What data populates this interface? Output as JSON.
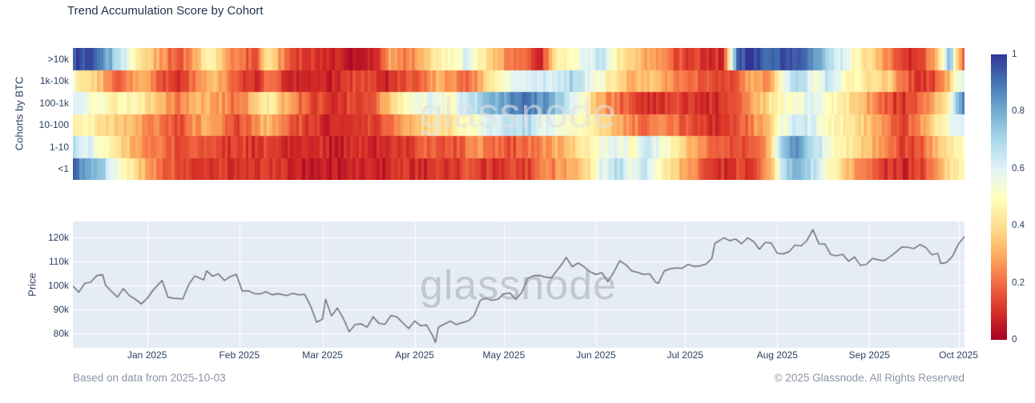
{
  "title": "Trend Accumulation Score by Cohort",
  "watermark": "glassnode",
  "footer": {
    "left": "Based on data from 2025-10-03",
    "right": "© 2025 Glassnode. All Rights Reserved"
  },
  "colors": {
    "panel_bg": "#e5ecf6",
    "grid": "#ffffff",
    "price_line": "#63666e",
    "text": "#2a3f5f",
    "muted": "#8a93a6"
  },
  "xaxis": {
    "ticks": [
      {
        "label": "Jan 2025",
        "t": 0.0833
      },
      {
        "label": "Feb 2025",
        "t": 0.1867
      },
      {
        "label": "Mar 2025",
        "t": 0.28
      },
      {
        "label": "Apr 2025",
        "t": 0.3833
      },
      {
        "label": "May 2025",
        "t": 0.4833
      },
      {
        "label": "Jun 2025",
        "t": 0.5867
      },
      {
        "label": "Jul 2025",
        "t": 0.6867
      },
      {
        "label": "Aug 2025",
        "t": 0.79
      },
      {
        "label": "Sep 2025",
        "t": 0.8933
      },
      {
        "label": "Oct 2025",
        "t": 0.9933
      }
    ]
  },
  "colorbar": {
    "ticks": [
      {
        "label": "1",
        "v": 1
      },
      {
        "label": "0.8",
        "v": 0.8
      },
      {
        "label": "0.6",
        "v": 0.6
      },
      {
        "label": "0.4",
        "v": 0.4
      },
      {
        "label": "0.2",
        "v": 0.2
      },
      {
        "label": "0",
        "v": 0
      }
    ]
  },
  "chart_data": [
    {
      "type": "heatmap",
      "ylabel": "Cohorts by BTC",
      "rows": [
        ">10k",
        "1k-10k",
        "100-1k",
        "10-100",
        "1-10",
        "<1"
      ],
      "zmin": 0,
      "zmax": 1,
      "x_span_days": 300,
      "colorscale": {
        "name": "RdYlBu",
        "stops": [
          [
            0,
            "#a50026"
          ],
          [
            0.1,
            "#d73027"
          ],
          [
            0.2,
            "#f46d43"
          ],
          [
            0.3,
            "#fdae61"
          ],
          [
            0.4,
            "#fee090"
          ],
          [
            0.5,
            "#ffffbf"
          ],
          [
            0.6,
            "#e0f3f8"
          ],
          [
            0.7,
            "#abd9e9"
          ],
          [
            0.8,
            "#74add1"
          ],
          [
            0.9,
            "#4575b4"
          ],
          [
            1,
            "#313695"
          ]
        ]
      },
      "values": [
        [
          0.97,
          0.95,
          0.85,
          0.7,
          0.5,
          0.35,
          0.25,
          0.15,
          0.3,
          0.5,
          0.3,
          0.2,
          0.15,
          0.45,
          0.2,
          0.12,
          0.1,
          0.07,
          0.05,
          0.06,
          0.1,
          0.3,
          0.2,
          0.3,
          0.45,
          0.5,
          0.6,
          0.45,
          0.3,
          0.25,
          0.15,
          0.1,
          0.45,
          0.5,
          0.6,
          0.65,
          0.45,
          0.35,
          0.3,
          0.25,
          0.15,
          0.12,
          0.1,
          0.08,
          0.95,
          0.98,
          0.95,
          0.97,
          0.93,
          0.85,
          0.7,
          0.6,
          0.45,
          0.35,
          0.25,
          0.12,
          0.1,
          0.3,
          0.75,
          0.07
        ],
        [
          0.5,
          0.4,
          0.3,
          0.2,
          0.3,
          0.25,
          0.15,
          0.1,
          0.2,
          0.35,
          0.25,
          0.15,
          0.1,
          0.2,
          0.1,
          0.08,
          0.1,
          0.06,
          0.1,
          0.15,
          0.1,
          0.08,
          0.15,
          0.2,
          0.3,
          0.25,
          0.2,
          0.3,
          0.45,
          0.55,
          0.6,
          0.65,
          0.6,
          0.7,
          0.6,
          0.5,
          0.4,
          0.3,
          0.35,
          0.3,
          0.25,
          0.2,
          0.15,
          0.12,
          0.2,
          0.3,
          0.25,
          0.6,
          0.7,
          0.55,
          0.65,
          0.5,
          0.45,
          0.4,
          0.35,
          0.2,
          0.1,
          0.15,
          0.35,
          0.65
        ],
        [
          0.6,
          0.55,
          0.5,
          0.45,
          0.5,
          0.4,
          0.3,
          0.2,
          0.35,
          0.3,
          0.25,
          0.2,
          0.35,
          0.45,
          0.3,
          0.2,
          0.15,
          0.1,
          0.12,
          0.15,
          0.2,
          0.35,
          0.5,
          0.55,
          0.6,
          0.5,
          0.65,
          0.7,
          0.8,
          0.85,
          0.9,
          0.85,
          0.75,
          0.6,
          0.45,
          0.3,
          0.2,
          0.15,
          0.1,
          0.12,
          0.15,
          0.1,
          0.08,
          0.12,
          0.2,
          0.3,
          0.4,
          0.5,
          0.55,
          0.6,
          0.5,
          0.45,
          0.35,
          0.25,
          0.15,
          0.1,
          0.2,
          0.3,
          0.5,
          0.95
        ],
        [
          0.45,
          0.5,
          0.4,
          0.35,
          0.3,
          0.25,
          0.2,
          0.15,
          0.25,
          0.3,
          0.2,
          0.15,
          0.25,
          0.35,
          0.2,
          0.15,
          0.1,
          0.08,
          0.1,
          0.12,
          0.15,
          0.2,
          0.3,
          0.35,
          0.45,
          0.4,
          0.5,
          0.55,
          0.6,
          0.65,
          0.7,
          0.6,
          0.55,
          0.5,
          0.45,
          0.4,
          0.3,
          0.25,
          0.2,
          0.25,
          0.2,
          0.15,
          0.1,
          0.12,
          0.15,
          0.25,
          0.35,
          0.55,
          0.65,
          0.6,
          0.5,
          0.45,
          0.4,
          0.3,
          0.2,
          0.15,
          0.25,
          0.4,
          0.55,
          0.65
        ],
        [
          0.7,
          0.6,
          0.5,
          0.4,
          0.3,
          0.25,
          0.2,
          0.15,
          0.2,
          0.15,
          0.1,
          0.12,
          0.1,
          0.15,
          0.1,
          0.08,
          0.1,
          0.06,
          0.08,
          0.1,
          0.08,
          0.1,
          0.12,
          0.15,
          0.2,
          0.15,
          0.2,
          0.25,
          0.2,
          0.15,
          0.2,
          0.25,
          0.3,
          0.35,
          0.45,
          0.55,
          0.6,
          0.5,
          0.65,
          0.55,
          0.4,
          0.3,
          0.2,
          0.15,
          0.12,
          0.2,
          0.3,
          0.75,
          0.85,
          0.7,
          0.55,
          0.45,
          0.4,
          0.3,
          0.2,
          0.12,
          0.15,
          0.3,
          0.45,
          0.5
        ],
        [
          0.9,
          0.8,
          0.7,
          0.55,
          0.4,
          0.3,
          0.2,
          0.15,
          0.1,
          0.12,
          0.1,
          0.08,
          0.1,
          0.12,
          0.08,
          0.06,
          0.08,
          0.05,
          0.06,
          0.08,
          0.06,
          0.08,
          0.1,
          0.08,
          0.12,
          0.1,
          0.15,
          0.12,
          0.1,
          0.15,
          0.12,
          0.2,
          0.25,
          0.3,
          0.4,
          0.6,
          0.7,
          0.55,
          0.65,
          0.45,
          0.35,
          0.25,
          0.15,
          0.1,
          0.12,
          0.15,
          0.25,
          0.7,
          0.8,
          0.65,
          0.5,
          0.35,
          0.25,
          0.15,
          0.1,
          0.08,
          0.12,
          0.25,
          0.4,
          0.45
        ]
      ]
    },
    {
      "type": "line",
      "ylabel": "Price",
      "ylim": [
        74,
        126.7
      ],
      "x_span_days": 300,
      "yticks": [
        {
          "label": "120k",
          "v": 120
        },
        {
          "label": "110k",
          "v": 110
        },
        {
          "label": "100k",
          "v": 100
        },
        {
          "label": "90k",
          "v": 90
        },
        {
          "label": "80k",
          "v": 80
        }
      ],
      "x_days": [
        0,
        2,
        4,
        6,
        8,
        10,
        11,
        13,
        15,
        17,
        19,
        21,
        23,
        25,
        27,
        30,
        32,
        34,
        37,
        39,
        41,
        44,
        45,
        47,
        49,
        51,
        53,
        55,
        57,
        59,
        61,
        63,
        65,
        67,
        69,
        72,
        74,
        76,
        78,
        80,
        82,
        84,
        85,
        87,
        89,
        91,
        93,
        95,
        97,
        99,
        101,
        103,
        105,
        107,
        109,
        111,
        113,
        115,
        117,
        119,
        121,
        122,
        123,
        125,
        127,
        129,
        131,
        133,
        135,
        137,
        139,
        141,
        143,
        145,
        147,
        149,
        151,
        153,
        155,
        157,
        159,
        161,
        163,
        165,
        166,
        168,
        170,
        172,
        174,
        176,
        178,
        180,
        182,
        184,
        186,
        188,
        190,
        192,
        194,
        196,
        197,
        199,
        201,
        203,
        205,
        207,
        209,
        211,
        213,
        215,
        216,
        218,
        219,
        221,
        223,
        225,
        227,
        229,
        231,
        233,
        235,
        237,
        239,
        241,
        243,
        245,
        247,
        249,
        251,
        253,
        255,
        257,
        259,
        261,
        263,
        265,
        267,
        269,
        271,
        273,
        275,
        277,
        279,
        281,
        283,
        285,
        287,
        289,
        291,
        292,
        294,
        296,
        298,
        300
      ],
      "y": [
        99.8,
        97.2,
        100.9,
        101.4,
        104.1,
        104.5,
        100.1,
        97.5,
        95.2,
        98.7,
        95.8,
        94.3,
        92.3,
        94.6,
        98.1,
        102.1,
        95.1,
        94.7,
        94.4,
        100.5,
        104.0,
        102.3,
        106.1,
        103.9,
        104.8,
        102.1,
        103.7,
        104.6,
        97.7,
        97.8,
        96.6,
        96.5,
        97.4,
        96.1,
        96.6,
        95.8,
        96.7,
        96.1,
        96.3,
        91.4,
        84.7,
        86.0,
        94.3,
        87.3,
        90.6,
        86.2,
        80.7,
        83.7,
        84.0,
        82.6,
        86.9,
        84.2,
        83.8,
        87.5,
        86.9,
        84.4,
        82.1,
        85.2,
        83.2,
        83.5,
        79.2,
        76.3,
        82.6,
        83.9,
        85.1,
        83.7,
        84.5,
        85.2,
        87.5,
        93.7,
        94.7,
        93.8,
        94.3,
        96.5,
        96.9,
        94.2,
        97.0,
        102.9,
        104.1,
        104.2,
        103.5,
        103.2,
        106.5,
        109.7,
        111.7,
        107.8,
        109.4,
        107.8,
        105.7,
        104.6,
        105.4,
        101.6,
        105.6,
        110.3,
        108.7,
        106.1,
        105.5,
        104.6,
        104.9,
        101.5,
        100.9,
        106.1,
        107.0,
        107.3,
        107.2,
        108.8,
        108.0,
        108.2,
        108.9,
        111.3,
        117.6,
        119.1,
        119.9,
        118.7,
        119.4,
        117.4,
        119.9,
        118.4,
        115.1,
        118.0,
        117.7,
        113.4,
        113.2,
        114.1,
        116.9,
        116.5,
        118.8,
        123.3,
        117.4,
        117.3,
        112.9,
        112.4,
        113.0,
        110.1,
        111.9,
        108.4,
        108.8,
        111.3,
        110.7,
        110.3,
        112.1,
        114.0,
        116.1,
        115.9,
        115.4,
        117.1,
        115.8,
        112.8,
        113.4,
        109.2,
        109.6,
        112.3,
        117.4,
        120.4
      ]
    }
  ]
}
